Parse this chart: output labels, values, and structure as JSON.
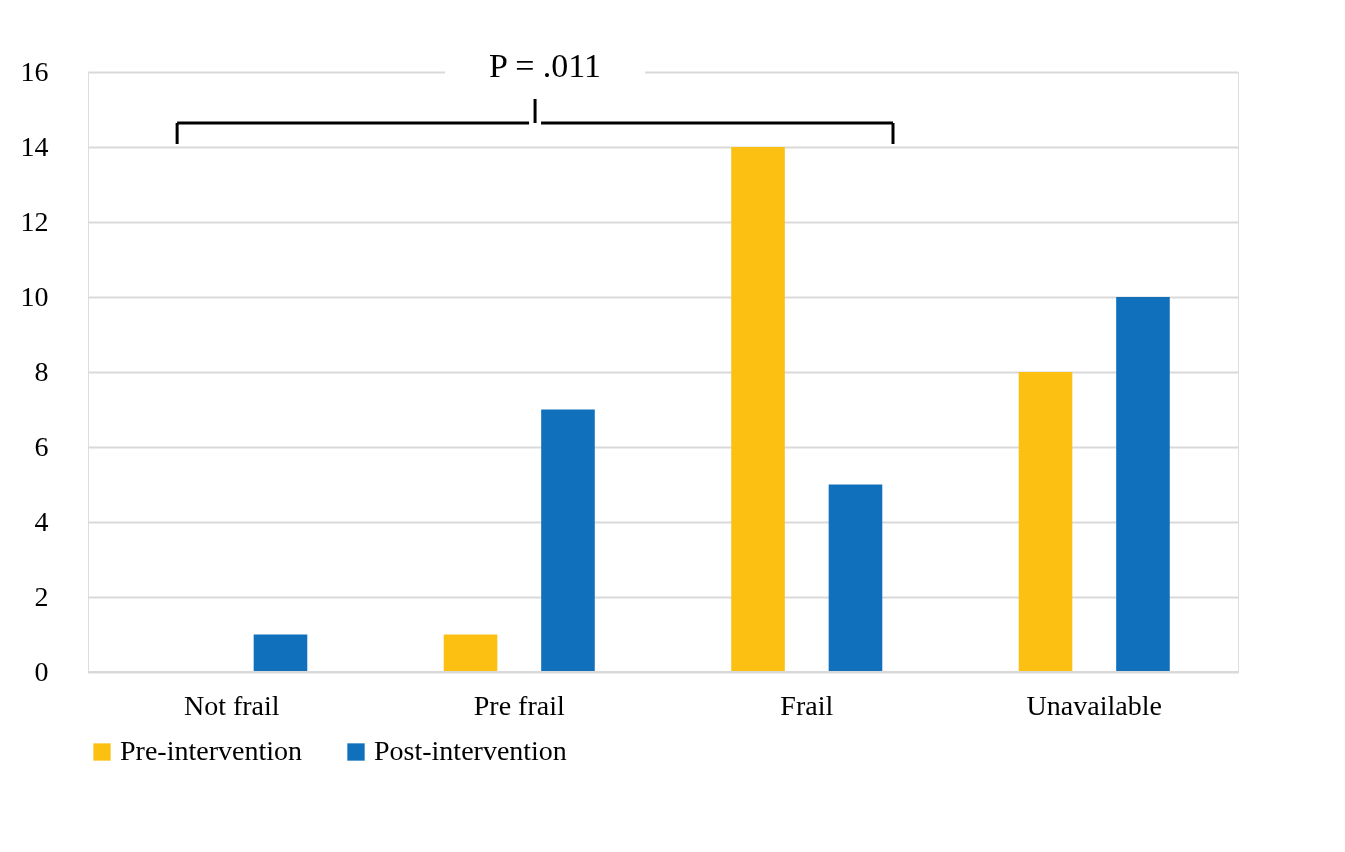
{
  "chart_data": {
    "type": "bar",
    "categories": [
      "Not frail",
      "Pre frail",
      "Frail",
      "Unavailable"
    ],
    "series": [
      {
        "name": "Pre-intervention",
        "color": "#fbc012",
        "values": [
          0,
          1,
          14,
          8
        ]
      },
      {
        "name": "Post-intervention",
        "color": "#1170bb",
        "values": [
          1,
          7,
          5,
          10
        ]
      }
    ],
    "ylim": [
      0,
      16
    ],
    "yticks": [
      0,
      2,
      4,
      6,
      8,
      10,
      12,
      14,
      16
    ],
    "grid": "y",
    "legend": "bottom",
    "annotations": [
      "P = .011"
    ]
  }
}
